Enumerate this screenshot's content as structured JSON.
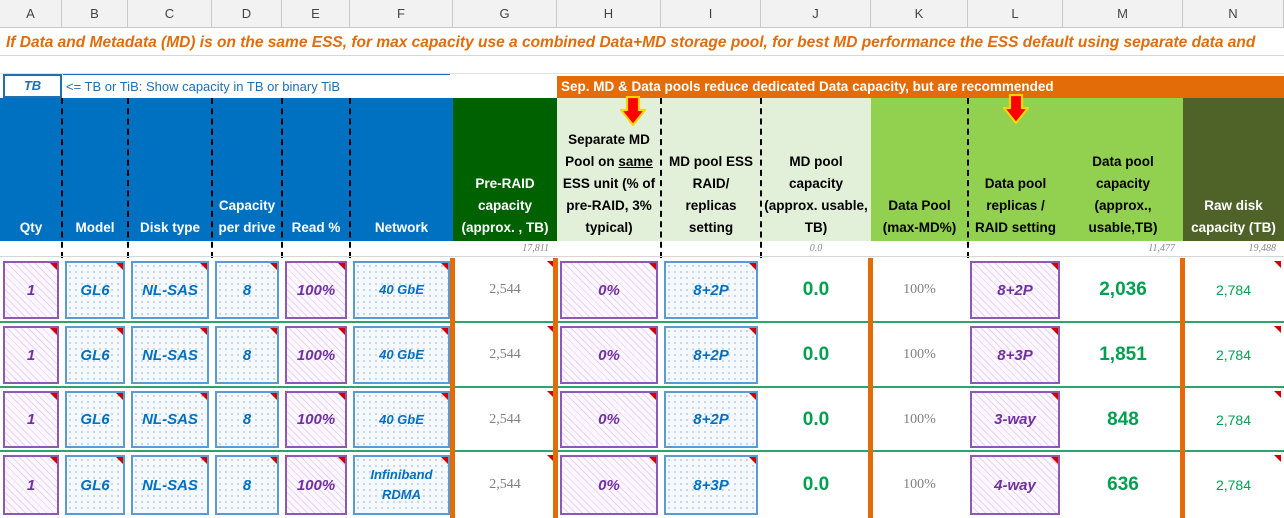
{
  "column_letters": [
    "A",
    "B",
    "C",
    "D",
    "E",
    "F",
    "G",
    "H",
    "I",
    "J",
    "K",
    "L",
    "M",
    "N"
  ],
  "banner": "If Data and Metadata (MD) is on the same ESS, for max capacity use a combined Data+MD storage pool, for best MD performance the ESS default using separate data and",
  "unit": {
    "value": "TB",
    "note": "<= TB or TiB: Show capacity in TB or binary TiB"
  },
  "pool_note": "Sep. MD & Data pools reduce dedicated Data capacity, but are recommended",
  "headers": {
    "qty": "Qty",
    "model": "Model",
    "disk_type": "Disk type",
    "capacity_per_drive": [
      "Capacity",
      "per drive"
    ],
    "read_pct": "Read %",
    "network": "Network",
    "pre_raid": [
      "Pre-RAID",
      "capacity",
      "(approx. , TB)"
    ],
    "sep_md": {
      "l1": "Separate MD",
      "l2a": "Pool on ",
      "l2b": "same",
      "l3": "ESS unit (% of",
      "l4": "pre-RAID, 3%",
      "l5": "typical)"
    },
    "md_raid": [
      "MD pool ESS",
      "RAID/",
      "replicas",
      "setting"
    ],
    "md_capacity": [
      "MD pool",
      "capacity",
      "(approx. usable,",
      "TB)"
    ],
    "data_pool": [
      "Data  Pool",
      "(max-MD%)"
    ],
    "data_replicas": [
      "Data pool",
      "replicas /",
      "RAID setting"
    ],
    "data_capacity": [
      "Data pool",
      "capacity",
      "(approx.,",
      "usable,TB)"
    ],
    "raw_disk": [
      "Raw disk",
      "capacity (TB)"
    ]
  },
  "sums": {
    "pre_raid": "17,811",
    "md_capacity": "0.0",
    "data_capacity": "11,477",
    "raw_disk": "19,488"
  },
  "rows": [
    {
      "qty": "1",
      "model": "GL6",
      "disk_type": "NL-SAS",
      "capacity": "8",
      "read_pct": "100%",
      "network": "40 GbE",
      "pre_raid": "2,544",
      "sep_md": "0%",
      "md_raid": "8+2P",
      "md_capacity": "0.0",
      "data_pool": "100%",
      "data_raid": "8+2P",
      "data_capacity": "2,036",
      "raw_disk": "2,784"
    },
    {
      "qty": "1",
      "model": "GL6",
      "disk_type": "NL-SAS",
      "capacity": "8",
      "read_pct": "100%",
      "network": "40 GbE",
      "pre_raid": "2,544",
      "sep_md": "0%",
      "md_raid": "8+2P",
      "md_capacity": "0.0",
      "data_pool": "100%",
      "data_raid": "8+3P",
      "data_capacity": "1,851",
      "raw_disk": "2,784"
    },
    {
      "qty": "1",
      "model": "GL6",
      "disk_type": "NL-SAS",
      "capacity": "8",
      "read_pct": "100%",
      "network": "40 GbE",
      "pre_raid": "2,544",
      "sep_md": "0%",
      "md_raid": "8+2P",
      "md_capacity": "0.0",
      "data_pool": "100%",
      "data_raid": "3-way",
      "data_capacity": "848",
      "raw_disk": "2,784"
    },
    {
      "qty": "1",
      "model": "GL6",
      "disk_type": "NL-SAS",
      "capacity": "8",
      "read_pct": "100%",
      "network": [
        "Infiniband",
        "RDMA"
      ],
      "pre_raid": "2,544",
      "sep_md": "0%",
      "md_raid": "8+3P",
      "md_capacity": "0.0",
      "data_pool": "100%",
      "data_raid": "4-way",
      "data_capacity": "636",
      "raw_disk": "2,784"
    }
  ],
  "colors": {
    "blue": "#0070c0",
    "orange": "#e36c09",
    "dark_green": "#006100",
    "light_green": "#e2f0d9",
    "green": "#92d050",
    "olive": "#4f6228",
    "purple": "#7030a0",
    "value_green": "#00a050"
  }
}
